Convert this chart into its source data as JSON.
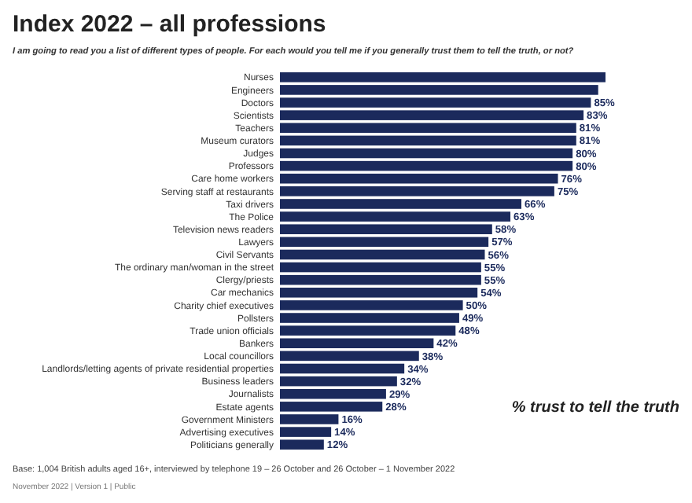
{
  "chart_data": {
    "type": "bar",
    "orientation": "horizontal",
    "title": "Index 2022 – all professions",
    "subtitle": "I am going to read you a list of different types of people. For each would you tell me if you generally trust them to tell the truth, or not?",
    "categories": [
      "Nurses",
      "Engineers",
      "Doctors",
      "Scientists",
      "Teachers",
      "Museum curators",
      "Judges",
      "Professors",
      "Care home workers",
      "Serving staff at restaurants",
      "Taxi drivers",
      "The Police",
      "Television news readers",
      "Lawyers",
      "Civil Servants",
      "The ordinary man/woman in the street",
      "Clergy/priests",
      "Car mechanics",
      "Charity chief executives",
      "Pollsters",
      "Trade union officials",
      "Bankers",
      "Local councillors",
      "Landlords/letting agents of private residential properties",
      "Business leaders",
      "Journalists",
      "Estate agents",
      "Government Ministers",
      "Advertising executives",
      "Politicians generally"
    ],
    "values": [
      89,
      87,
      85,
      83,
      81,
      81,
      80,
      80,
      76,
      75,
      66,
      63,
      58,
      57,
      56,
      55,
      55,
      54,
      50,
      49,
      48,
      42,
      38,
      34,
      32,
      29,
      28,
      16,
      14,
      12
    ],
    "value_labels": [
      null,
      null,
      "85%",
      "83%",
      "81%",
      "81%",
      "80%",
      "80%",
      "76%",
      "75%",
      "66%",
      "63%",
      "58%",
      "57%",
      "56%",
      "55%",
      "55%",
      "54%",
      "50%",
      "49%",
      "48%",
      "42%",
      "38%",
      "34%",
      "32%",
      "29%",
      "28%",
      "16%",
      "14%",
      "12%"
    ],
    "color": "#1b2a5c",
    "tick_labels": "y",
    "annotations": [
      "% trust to tell the truth",
      "Base: 1,004 British adults aged 16+, interviewed by telephone 19 – 26 October and 26 October – 1 November 2022",
      "November 2022 | Version 1 | Public"
    ]
  }
}
